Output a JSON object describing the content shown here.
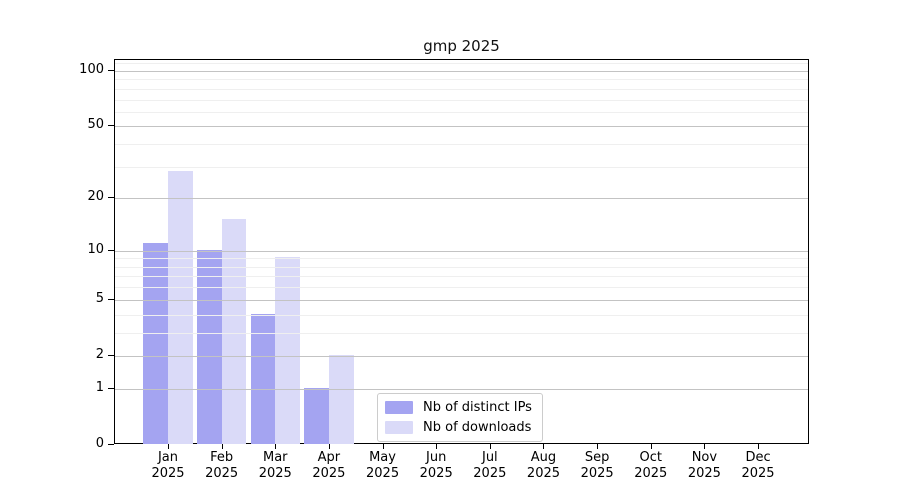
{
  "chart_data": {
    "type": "bar",
    "title": "gmp 2025",
    "categories": [
      "Jan",
      "Feb",
      "Mar",
      "Apr",
      "May",
      "Jun",
      "Jul",
      "Aug",
      "Sep",
      "Oct",
      "Nov",
      "Dec"
    ],
    "category_year": "2025",
    "series": [
      {
        "name": "Nb of distinct IPs",
        "color": "#a4a4f1",
        "values": [
          11,
          10,
          4,
          1,
          0,
          0,
          0,
          0,
          0,
          0,
          0,
          0
        ]
      },
      {
        "name": "Nb of downloads",
        "color": "#dadaf8",
        "values": [
          28,
          15,
          9,
          2,
          0,
          0,
          0,
          0,
          0,
          0,
          0,
          0
        ]
      }
    ],
    "y_scale": "log10(1+x)",
    "y_axis": {
      "major_ticks": [
        0,
        1,
        2,
        5,
        10,
        20,
        50,
        100
      ],
      "major_tick_labels": [
        "0",
        "1",
        "2",
        "5",
        "10",
        "20",
        "50",
        "100"
      ],
      "minor_ticks": [
        3,
        4,
        6,
        7,
        8,
        9,
        30,
        40,
        60,
        70,
        80,
        90,
        110
      ],
      "ylim": [
        0,
        115
      ]
    },
    "grid": "on",
    "legend_position": "lower center"
  },
  "colors": {
    "background": "#ffffff",
    "spine": "#000000",
    "grid_major": "#c3c3c3",
    "grid_minor": "#efefef",
    "text": "#000000",
    "legend_border": "#cccccc"
  }
}
